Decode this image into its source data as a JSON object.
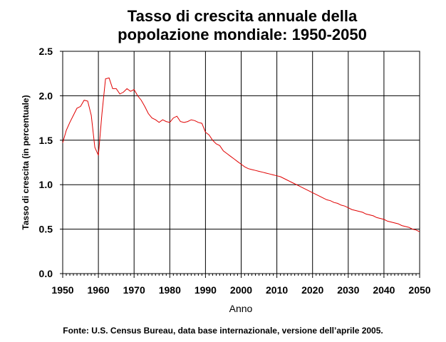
{
  "chart_data": {
    "type": "line",
    "title_line1": "Tasso di crescita annuale della",
    "title_line2": "popolazione mondiale: 1950-2050",
    "xlabel": "Anno",
    "ylabel": "Tasso di crescita (in percentuale)",
    "source": "Fonte: U.S. Census Bureau, data base internazionale, versione dell’aprile 2005.",
    "xlim": [
      1950,
      2050
    ],
    "ylim": [
      0,
      2.5
    ],
    "xticks": [
      "1950",
      "1960",
      "1970",
      "1980",
      "1990",
      "2000",
      "2010",
      "2020",
      "2030",
      "2040",
      "2050"
    ],
    "yticks": [
      "0.0",
      "0.5",
      "1.0",
      "1.5",
      "2.0",
      "2.5"
    ],
    "grid": true,
    "line_color": "#e00000",
    "series": [
      {
        "x": [
          1950,
          1951,
          1952,
          1953,
          1954,
          1955,
          1956,
          1957,
          1958,
          1959,
          1960,
          1961,
          1962,
          1963,
          1964,
          1965,
          1966,
          1967,
          1968,
          1969,
          1970,
          1971,
          1972,
          1973,
          1974,
          1975,
          1976,
          1977,
          1978,
          1979,
          1980,
          1981,
          1982,
          1983,
          1984,
          1985,
          1986,
          1987,
          1988,
          1989,
          1990,
          1991,
          1992,
          1993,
          1994,
          1995,
          1996,
          1997,
          1998,
          1999,
          2000,
          2001,
          2002,
          2003,
          2004,
          2005,
          2006,
          2007,
          2008,
          2009,
          2010,
          2011,
          2012,
          2013,
          2014,
          2015,
          2016,
          2017,
          2018,
          2019,
          2020,
          2021,
          2022,
          2023,
          2024,
          2025,
          2026,
          2027,
          2028,
          2029,
          2030,
          2031,
          2032,
          2033,
          2034,
          2035,
          2036,
          2037,
          2038,
          2039,
          2040,
          2041,
          2042,
          2043,
          2044,
          2045,
          2046,
          2047,
          2048,
          2049,
          2050
        ],
        "values": [
          1.47,
          1.61,
          1.7,
          1.78,
          1.86,
          1.88,
          1.95,
          1.94,
          1.78,
          1.42,
          1.33,
          1.8,
          2.19,
          2.2,
          2.08,
          2.08,
          2.02,
          2.04,
          2.08,
          2.05,
          2.07,
          2.0,
          1.95,
          1.88,
          1.8,
          1.75,
          1.73,
          1.7,
          1.73,
          1.71,
          1.7,
          1.75,
          1.77,
          1.71,
          1.7,
          1.71,
          1.73,
          1.72,
          1.7,
          1.69,
          1.59,
          1.56,
          1.5,
          1.46,
          1.44,
          1.38,
          1.35,
          1.32,
          1.29,
          1.26,
          1.23,
          1.2,
          1.18,
          1.17,
          1.16,
          1.15,
          1.14,
          1.13,
          1.12,
          1.11,
          1.1,
          1.09,
          1.07,
          1.05,
          1.03,
          1.01,
          0.99,
          0.97,
          0.95,
          0.93,
          0.91,
          0.89,
          0.87,
          0.85,
          0.83,
          0.82,
          0.8,
          0.79,
          0.77,
          0.76,
          0.74,
          0.72,
          0.71,
          0.7,
          0.69,
          0.67,
          0.66,
          0.65,
          0.63,
          0.62,
          0.61,
          0.59,
          0.58,
          0.57,
          0.56,
          0.54,
          0.53,
          0.52,
          0.5,
          0.49,
          0.47
        ]
      }
    ]
  }
}
